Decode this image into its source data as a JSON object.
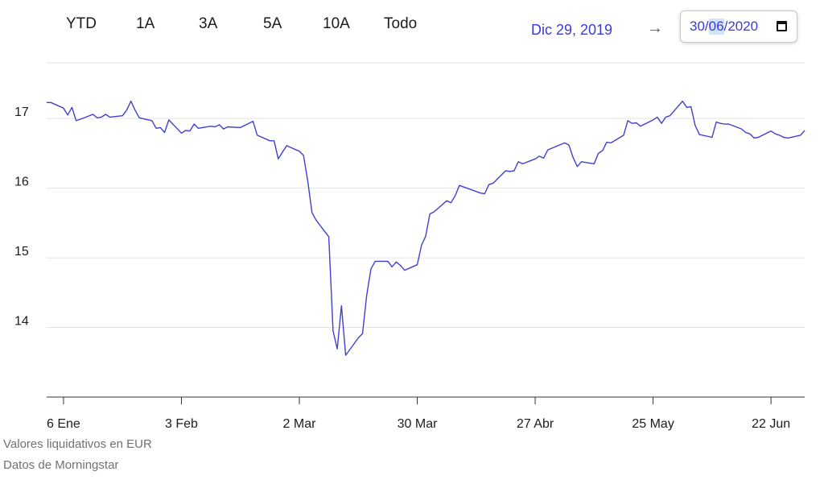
{
  "range_buttons": [
    "YTD",
    "1A",
    "3A",
    "5A",
    "10A",
    "Todo"
  ],
  "date_range": {
    "from": "Dic 29, 2019",
    "arrow": "→",
    "to_day": "30",
    "to_month": "06",
    "to_year": "2020",
    "sep": "/"
  },
  "footer": {
    "line1": "Valores liquidativos en EUR",
    "line2": "Datos de Morningstar"
  },
  "colors": {
    "series": "#4040d0",
    "grid": "#e3e3e3",
    "axis": "#333333",
    "text": "#1c1c1c"
  },
  "chart_data": {
    "type": "line",
    "title": "",
    "xlabel": "",
    "ylabel": "",
    "ylim": [
      13,
      17.8
    ],
    "y_ticks": [
      14,
      15,
      16,
      17
    ],
    "x_ticks": [
      {
        "label": "6 Ene",
        "date": "2020-01-06"
      },
      {
        "label": "3 Feb",
        "date": "2020-02-03"
      },
      {
        "label": "2 Mar",
        "date": "2020-03-02"
      },
      {
        "label": "30 Mar",
        "date": "2020-03-30"
      },
      {
        "label": "27 Abr",
        "date": "2020-04-27"
      },
      {
        "label": "25 May",
        "date": "2020-05-25"
      },
      {
        "label": "22 Jun",
        "date": "2020-06-22"
      }
    ],
    "series": [
      {
        "x": [
          "2020-01-02",
          "2020-01-03",
          "2020-01-06",
          "2020-01-07",
          "2020-01-08",
          "2020-01-09",
          "2020-01-10",
          "2020-01-13",
          "2020-01-14",
          "2020-01-15",
          "2020-01-16",
          "2020-01-17",
          "2020-01-20",
          "2020-01-21",
          "2020-01-22",
          "2020-01-23",
          "2020-01-24",
          "2020-01-27",
          "2020-01-28",
          "2020-01-29",
          "2020-01-30",
          "2020-01-31",
          "2020-02-03",
          "2020-02-04",
          "2020-02-05",
          "2020-02-06",
          "2020-02-07",
          "2020-02-10",
          "2020-02-11",
          "2020-02-12",
          "2020-02-13",
          "2020-02-14",
          "2020-02-17",
          "2020-02-18",
          "2020-02-19",
          "2020-02-20",
          "2020-02-21",
          "2020-02-24",
          "2020-02-25",
          "2020-02-26",
          "2020-02-27",
          "2020-02-28",
          "2020-03-02",
          "2020-03-03",
          "2020-03-04",
          "2020-03-05",
          "2020-03-06",
          "2020-03-09",
          "2020-03-10",
          "2020-03-11",
          "2020-03-12",
          "2020-03-13",
          "2020-03-16",
          "2020-03-17",
          "2020-03-18",
          "2020-03-19",
          "2020-03-20",
          "2020-03-23",
          "2020-03-24",
          "2020-03-25",
          "2020-03-26",
          "2020-03-27",
          "2020-03-30",
          "2020-03-31",
          "2020-04-01",
          "2020-04-02",
          "2020-04-03",
          "2020-04-06",
          "2020-04-07",
          "2020-04-08",
          "2020-04-09",
          "2020-04-14",
          "2020-04-15",
          "2020-04-16",
          "2020-04-17",
          "2020-04-20",
          "2020-04-21",
          "2020-04-22",
          "2020-04-23",
          "2020-04-24",
          "2020-04-27",
          "2020-04-28",
          "2020-04-29",
          "2020-04-30",
          "2020-05-04",
          "2020-05-05",
          "2020-05-06",
          "2020-05-07",
          "2020-05-08",
          "2020-05-11",
          "2020-05-12",
          "2020-05-13",
          "2020-05-14",
          "2020-05-15",
          "2020-05-18",
          "2020-05-19",
          "2020-05-20",
          "2020-05-21",
          "2020-05-22",
          "2020-05-25",
          "2020-05-26",
          "2020-05-27",
          "2020-05-28",
          "2020-05-29",
          "2020-06-01",
          "2020-06-02",
          "2020-06-03",
          "2020-06-04",
          "2020-06-05",
          "2020-06-08",
          "2020-06-09",
          "2020-06-10",
          "2020-06-11",
          "2020-06-12",
          "2020-06-15",
          "2020-06-16",
          "2020-06-17",
          "2020-06-18",
          "2020-06-19",
          "2020-06-22",
          "2020-06-23",
          "2020-06-24",
          "2020-06-25",
          "2020-06-26",
          "2020-06-29",
          "2020-06-30"
        ],
        "y": [
          17.23,
          17.23,
          17.15,
          17.05,
          17.16,
          16.97,
          16.99,
          17.06,
          17.01,
          17.02,
          17.06,
          17.02,
          17.04,
          17.12,
          17.25,
          17.12,
          17.01,
          16.97,
          16.86,
          16.87,
          16.8,
          16.98,
          16.79,
          16.83,
          16.82,
          16.92,
          16.86,
          16.89,
          16.88,
          16.91,
          16.85,
          16.88,
          16.87,
          16.9,
          16.93,
          16.96,
          16.76,
          16.68,
          16.68,
          16.42,
          16.52,
          16.61,
          16.53,
          16.47,
          16.1,
          15.65,
          15.54,
          15.3,
          13.95,
          13.69,
          14.31,
          13.6,
          13.85,
          13.91,
          14.46,
          14.84,
          14.95,
          14.95,
          14.87,
          14.94,
          14.89,
          14.82,
          14.9,
          15.18,
          15.31,
          15.63,
          15.66,
          15.82,
          15.79,
          15.89,
          16.04,
          15.93,
          15.92,
          16.05,
          16.07,
          16.25,
          16.24,
          16.25,
          16.38,
          16.35,
          16.42,
          16.46,
          16.43,
          16.55,
          16.65,
          16.62,
          16.44,
          16.31,
          16.38,
          16.35,
          16.5,
          16.54,
          16.66,
          16.65,
          16.76,
          16.97,
          16.93,
          16.94,
          16.89,
          16.98,
          17.02,
          16.93,
          17.02,
          17.04,
          17.25,
          17.16,
          17.17,
          16.9,
          16.77,
          16.73,
          16.95,
          16.93,
          16.92,
          16.92,
          16.85,
          16.8,
          16.78,
          16.72,
          16.73,
          16.82,
          16.78,
          16.76,
          16.73,
          16.72,
          16.76,
          16.83
        ]
      }
    ],
    "grid": true,
    "legend": "none"
  }
}
